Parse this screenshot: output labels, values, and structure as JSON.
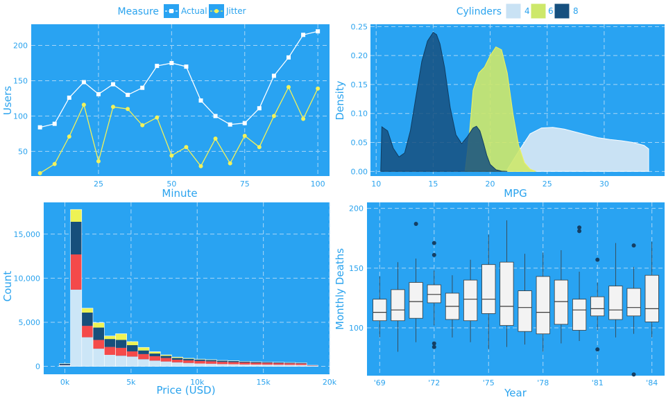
{
  "colors": {
    "panel": "#29a3f2",
    "grid": "#a9d6f6",
    "text": "#2aa3ee",
    "white": "#ffffff",
    "yellow": "#f2f25a",
    "cyl4": "#c9e2f4",
    "cyl6": "#cde86a",
    "cyl8": "#16507f",
    "hist_light": "#cce6f7",
    "hist_red": "#f44a4a",
    "hist_navy": "#174f7b",
    "hist_yellow": "#eef254",
    "box_fill": "#f3f3f3",
    "box_line": "#3a3a3a"
  },
  "chart_data": [
    {
      "type": "line",
      "legend_title": "Measure",
      "legend_position": "top",
      "xlabel": "Minute",
      "ylabel": "Users",
      "xlim": [
        2,
        104
      ],
      "ylim": [
        15,
        230
      ],
      "xticks": [
        25,
        50,
        75,
        100
      ],
      "yticks": [
        50,
        100,
        150,
        200
      ],
      "x": [
        5,
        10,
        15,
        20,
        25,
        30,
        35,
        40,
        45,
        50,
        55,
        60,
        65,
        70,
        75,
        80,
        85,
        90,
        95,
        100
      ],
      "series": [
        {
          "name": "Actual",
          "values": [
            84,
            89,
            126,
            148,
            131,
            145,
            130,
            140,
            171,
            175,
            170,
            122,
            100,
            88,
            90,
            111,
            157,
            183,
            215,
            220
          ]
        },
        {
          "name": "Jitter",
          "values": [
            19,
            32,
            71,
            116,
            36,
            113,
            110,
            87,
            98,
            44,
            56,
            29,
            68,
            33,
            72,
            56,
            100,
            141,
            96,
            139
          ]
        }
      ]
    },
    {
      "type": "area",
      "legend_title": "Cylinders",
      "legend_position": "top",
      "xlabel": "MPG",
      "ylabel": "Density",
      "xlim": [
        9.5,
        35.3
      ],
      "ylim": [
        -0.008,
        0.254
      ],
      "xticks": [
        10,
        15,
        20,
        25,
        30
      ],
      "yticks": [
        0.0,
        0.05,
        0.1,
        0.15,
        0.2,
        0.25
      ],
      "ytick_labels": [
        "0.00",
        "0.05",
        "0.10",
        "0.15",
        "0.20",
        "0.25"
      ],
      "series": [
        {
          "name": "4",
          "x": [
            21.4,
            22.5,
            23.5,
            24.5,
            25.5,
            26.5,
            27.5,
            28.5,
            29.5,
            30.5,
            31.5,
            32.5,
            33.5,
            33.9
          ],
          "values": [
            0,
            0.035,
            0.065,
            0.075,
            0.076,
            0.073,
            0.068,
            0.063,
            0.058,
            0.055,
            0.053,
            0.05,
            0.045,
            0.039
          ]
        },
        {
          "name": "6",
          "x": [
            17.8,
            18.2,
            18.5,
            19.0,
            19.5,
            20.0,
            20.5,
            21.0,
            21.5,
            22.0,
            22.5,
            23.0,
            23.5,
            24.0
          ],
          "values": [
            0,
            0.07,
            0.14,
            0.17,
            0.18,
            0.2,
            0.215,
            0.21,
            0.17,
            0.1,
            0.045,
            0.015,
            0.004,
            0.0
          ]
        },
        {
          "name": "8",
          "x": [
            10.4,
            10.5,
            11.0,
            11.5,
            12.0,
            12.5,
            13.0,
            13.5,
            14.0,
            14.5,
            15.0,
            15.3,
            15.6,
            16.0,
            16.5,
            17.0,
            17.5,
            18.0,
            18.5,
            18.8,
            19.1,
            19.4,
            19.7,
            20.0,
            20.5,
            21.0,
            21.5
          ],
          "values": [
            0.0,
            0.077,
            0.07,
            0.04,
            0.025,
            0.032,
            0.07,
            0.13,
            0.19,
            0.225,
            0.24,
            0.236,
            0.22,
            0.18,
            0.11,
            0.063,
            0.048,
            0.06,
            0.075,
            0.078,
            0.07,
            0.05,
            0.028,
            0.012,
            0.003,
            0.0005,
            0.0
          ]
        }
      ]
    },
    {
      "type": "bar",
      "stacked": true,
      "xlabel": "Price (USD)",
      "ylabel": "Count",
      "xlim": [
        -1600,
        20000
      ],
      "ylim": [
        -900,
        18600
      ],
      "xticks": [
        0,
        5000,
        10000,
        15000,
        20000
      ],
      "xtick_labels": [
        "0k",
        "5k",
        "10k",
        "15k",
        "20k"
      ],
      "yticks": [
        0,
        5000,
        10000,
        15000
      ],
      "ytick_labels": [
        "0",
        "5,000",
        "10,000",
        "15,000"
      ],
      "bin_width": 850,
      "bin_starts": [
        -425,
        425,
        1275,
        2125,
        2975,
        3825,
        4675,
        5525,
        6375,
        7225,
        8075,
        8925,
        9775,
        10625,
        11475,
        12325,
        13175,
        14025,
        14875,
        15725,
        16575,
        17425,
        18275
      ],
      "series": [
        {
          "name": "light",
          "values": [
            120,
            8700,
            3300,
            2000,
            1300,
            1200,
            1100,
            800,
            650,
            550,
            450,
            380,
            320,
            300,
            260,
            240,
            220,
            200,
            190,
            180,
            170,
            160,
            50
          ]
        },
        {
          "name": "red",
          "values": [
            30,
            4000,
            1300,
            1000,
            900,
            900,
            600,
            600,
            500,
            400,
            300,
            300,
            300,
            280,
            250,
            240,
            220,
            200,
            200,
            190,
            180,
            170,
            50
          ]
        },
        {
          "name": "navy",
          "values": [
            150,
            3700,
            1500,
            1400,
            900,
            900,
            700,
            400,
            300,
            230,
            200,
            180,
            150,
            140,
            130,
            120,
            110,
            100,
            90,
            80,
            70,
            60,
            20
          ]
        },
        {
          "name": "yellow",
          "values": [
            20,
            1400,
            500,
            550,
            350,
            700,
            400,
            350,
            210,
            120,
            100,
            60,
            50,
            40,
            30,
            30,
            20,
            20,
            20,
            20,
            20,
            20,
            5
          ]
        }
      ]
    },
    {
      "type": "box",
      "xlabel": "Year",
      "ylabel": "Monthly Deaths",
      "ylim": [
        60,
        205
      ],
      "yticks": [
        100,
        150,
        200
      ],
      "xticks": [
        "'69",
        "'72",
        "'75",
        "'78",
        "'81",
        "'84"
      ],
      "categories": [
        1969,
        1970,
        1971,
        1972,
        1973,
        1974,
        1975,
        1976,
        1977,
        1978,
        1979,
        1980,
        1981,
        1982,
        1983,
        1984
      ],
      "boxes": [
        {
          "q1": 106,
          "median": 113,
          "q3": 124,
          "wlo": 92,
          "whi": 143,
          "outliers": []
        },
        {
          "q1": 106,
          "median": 115,
          "q3": 132,
          "wlo": 80,
          "whi": 155,
          "outliers": []
        },
        {
          "q1": 108,
          "median": 122,
          "q3": 138,
          "wlo": 88,
          "whi": 158,
          "outliers": [
            187
          ]
        },
        {
          "q1": 121,
          "median": 128,
          "q3": 136,
          "wlo": 102,
          "whi": 148,
          "outliers": [
            171,
            161,
            87,
            84
          ]
        },
        {
          "q1": 107,
          "median": 118,
          "q3": 129,
          "wlo": 92,
          "whi": 144,
          "outliers": []
        },
        {
          "q1": 106,
          "median": 124,
          "q3": 140,
          "wlo": 88,
          "whi": 157,
          "outliers": []
        },
        {
          "q1": 112,
          "median": 124,
          "q3": 153,
          "wlo": 82,
          "whi": 178,
          "outliers": []
        },
        {
          "q1": 102,
          "median": 118,
          "q3": 155,
          "wlo": 84,
          "whi": 190,
          "outliers": []
        },
        {
          "q1": 97,
          "median": 117,
          "q3": 131,
          "wlo": 86,
          "whi": 162,
          "outliers": []
        },
        {
          "q1": 95,
          "median": 113,
          "q3": 143,
          "wlo": 80,
          "whi": 163,
          "outliers": []
        },
        {
          "q1": 103,
          "median": 122,
          "q3": 140,
          "wlo": 87,
          "whi": 165,
          "outliers": []
        },
        {
          "q1": 98,
          "median": 115,
          "q3": 124,
          "wlo": 89,
          "whi": 147,
          "outliers": [
            184,
            181
          ]
        },
        {
          "q1": 110,
          "median": 116,
          "q3": 126,
          "wlo": 98,
          "whi": 138,
          "outliers": [
            157,
            82
          ]
        },
        {
          "q1": 107,
          "median": 115,
          "q3": 135,
          "wlo": 92,
          "whi": 171,
          "outliers": []
        },
        {
          "q1": 110,
          "median": 117,
          "q3": 133,
          "wlo": 95,
          "whi": 151,
          "outliers": [
            169,
            61
          ]
        },
        {
          "q1": 105,
          "median": 116,
          "q3": 144,
          "wlo": 92,
          "whi": 172,
          "outliers": []
        }
      ]
    }
  ]
}
